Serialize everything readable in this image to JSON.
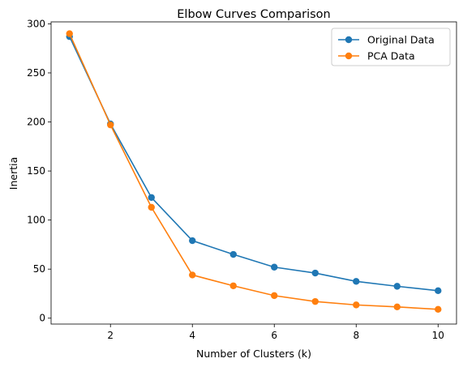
{
  "chart_data": {
    "type": "line",
    "title": "Elbow Curves Comparison",
    "xlabel": "Number of Clusters (k)",
    "ylabel": "Inertia",
    "x": [
      1,
      2,
      3,
      4,
      5,
      6,
      7,
      8,
      9,
      10
    ],
    "xlim": [
      0.55,
      10.45
    ],
    "ylim": [
      -6,
      302
    ],
    "xticks": [
      2,
      4,
      6,
      8,
      10
    ],
    "yticks": [
      0,
      50,
      100,
      150,
      200,
      250,
      300
    ],
    "grid": false,
    "legend_position": "top-right",
    "series": [
      {
        "name": "Original Data",
        "color": "#1f77b4",
        "marker": "circle",
        "values": [
          287,
          198,
          123,
          79,
          65,
          52,
          46,
          37.5,
          32.5,
          28
        ]
      },
      {
        "name": "PCA Data",
        "color": "#ff7f0e",
        "marker": "circle",
        "values": [
          290,
          197,
          113,
          44,
          33,
          23,
          17,
          13.5,
          11.5,
          9
        ]
      }
    ]
  }
}
